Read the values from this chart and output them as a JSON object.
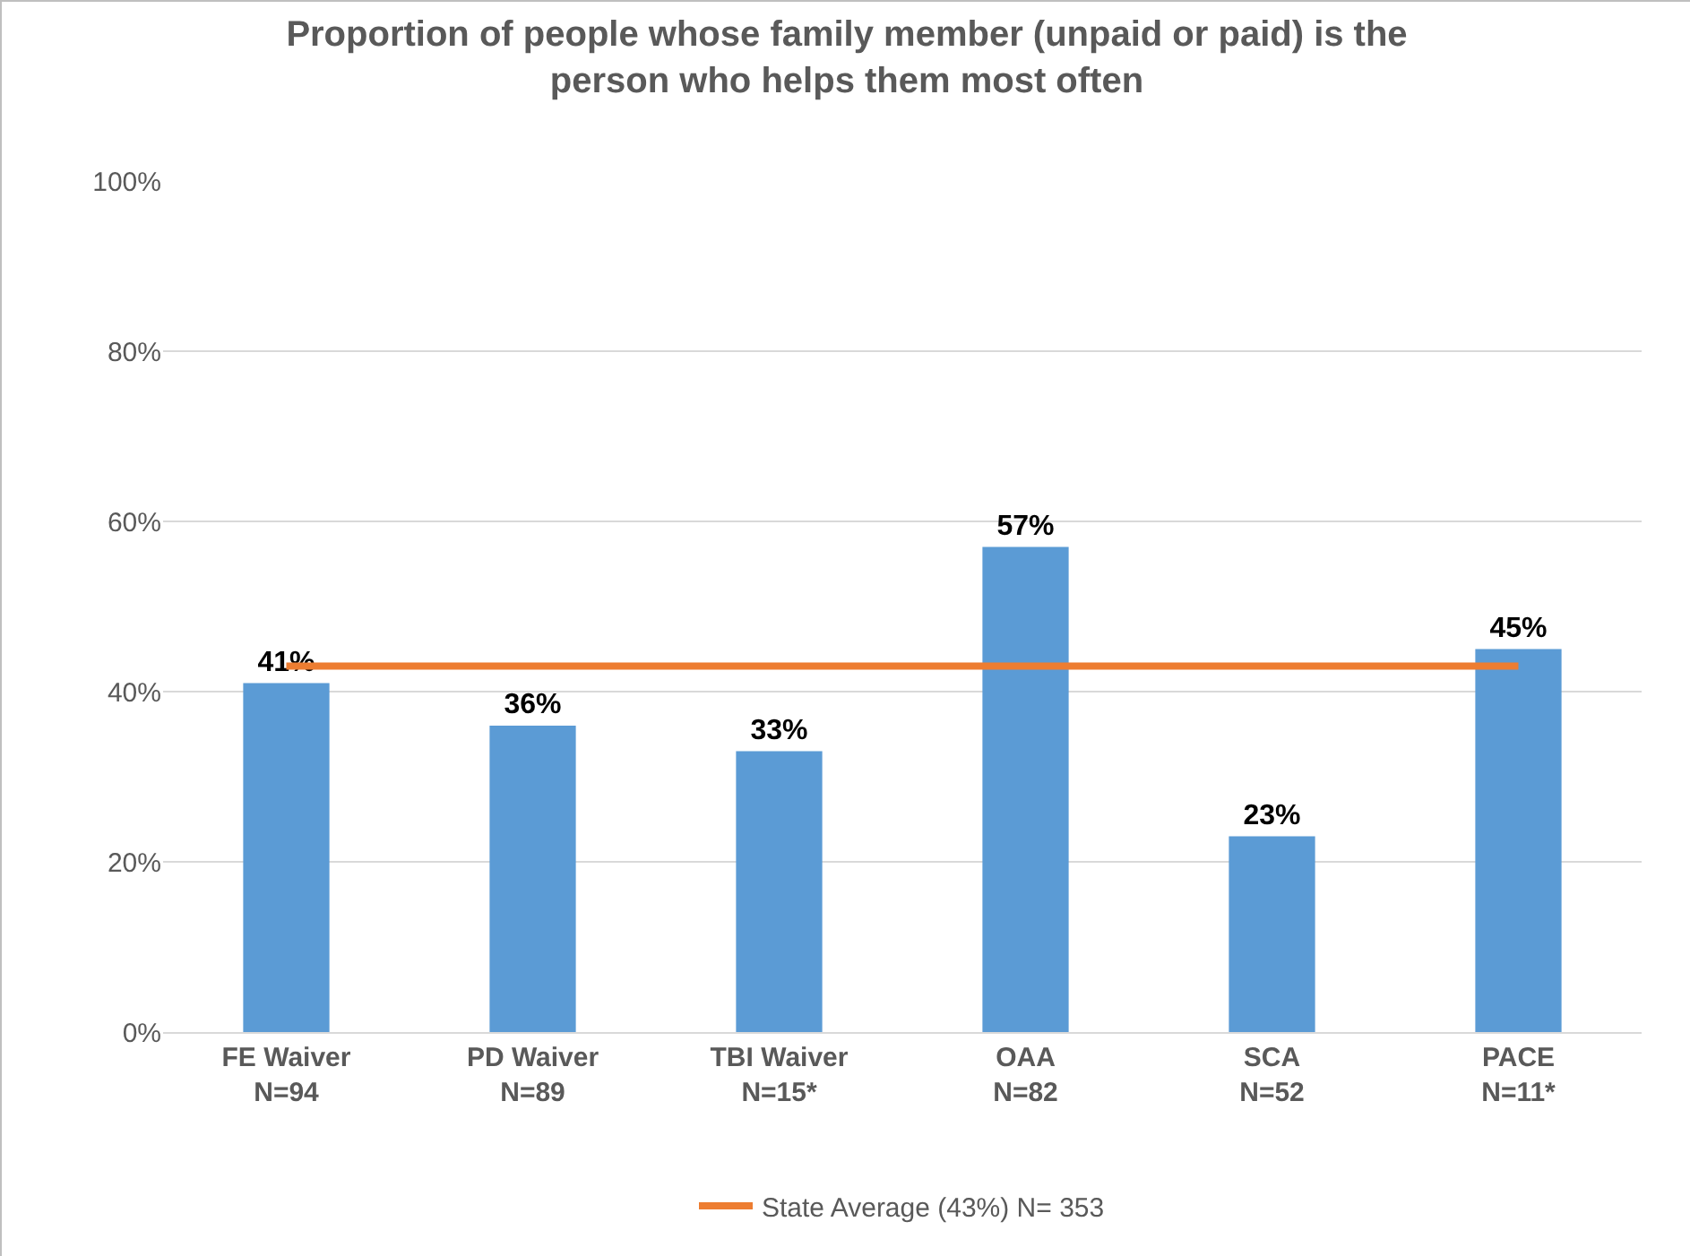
{
  "chart_data": {
    "type": "bar",
    "title": "Proportion of people whose family member (unpaid or paid) is the\nperson who helps them most often",
    "categories": [
      "FE Waiver\nN=94",
      "PD Waiver\nN=89",
      "TBI Waiver\nN=15*",
      "OAA\nN=82",
      "SCA\nN=52",
      "PACE\nN=11*"
    ],
    "series": [
      {
        "color": "#5b9bd5",
        "values": [
          41,
          36,
          33,
          57,
          23,
          45
        ],
        "value_labels": [
          "41%",
          "36%",
          "33%",
          "57%",
          "23%",
          "45%"
        ]
      },
      {
        "type": "line",
        "name": "State Average (43%) N= 353",
        "color": "#ed7d31",
        "values": [
          43,
          43,
          43,
          43,
          43,
          43
        ]
      }
    ],
    "ylim": [
      0,
      100
    ],
    "yticks": [
      {
        "value": 0,
        "label": "0%"
      },
      {
        "value": 20,
        "label": "20%"
      },
      {
        "value": 40,
        "label": "40%"
      },
      {
        "value": 60,
        "label": "60%"
      },
      {
        "value": 80,
        "label": "80%"
      },
      {
        "value": 100,
        "label": "100%"
      }
    ],
    "grid": "y",
    "legend": "bottom"
  }
}
